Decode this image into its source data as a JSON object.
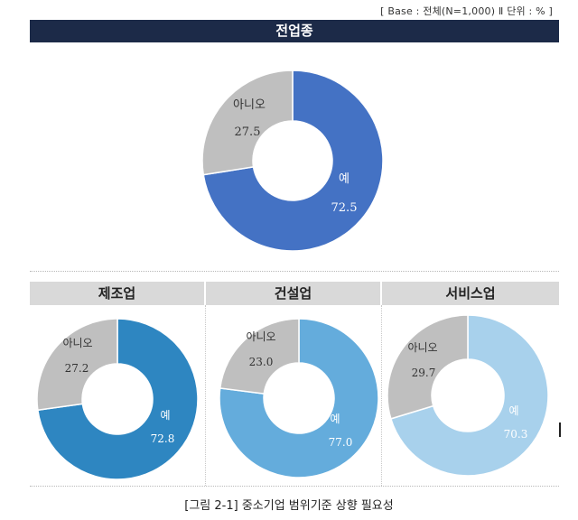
{
  "base_note": "[ Base : 전체(N=1,000) Ⅱ 단위 : % ]",
  "caption": "[그림 2-1] 중소기업 범위기준 상향 필요성",
  "chart_data": [
    {
      "type": "pie",
      "title": "전업종",
      "categories": [
        "예",
        "아니오"
      ],
      "values": [
        72.5,
        27.5
      ],
      "colors": [
        "#4472c4",
        "#bfbfbf"
      ],
      "value_labels": [
        "72.5",
        "27.5"
      ]
    },
    {
      "type": "pie",
      "title": "제조업",
      "categories": [
        "예",
        "아니오"
      ],
      "values": [
        72.8,
        27.2
      ],
      "colors": [
        "#2e86c1",
        "#bfbfbf"
      ],
      "value_labels": [
        "72.8",
        "27.2"
      ]
    },
    {
      "type": "pie",
      "title": "건설업",
      "categories": [
        "예",
        "아니오"
      ],
      "values": [
        77.0,
        23.0
      ],
      "colors": [
        "#64acdc",
        "#bfbfbf"
      ],
      "value_labels": [
        "77.0",
        "23.0"
      ]
    },
    {
      "type": "pie",
      "title": "서비스업",
      "categories": [
        "예",
        "아니오"
      ],
      "values": [
        70.3,
        29.7
      ],
      "colors": [
        "#a8d1ec",
        "#bfbfbf"
      ],
      "value_labels": [
        "70.3",
        "29.7"
      ]
    }
  ]
}
